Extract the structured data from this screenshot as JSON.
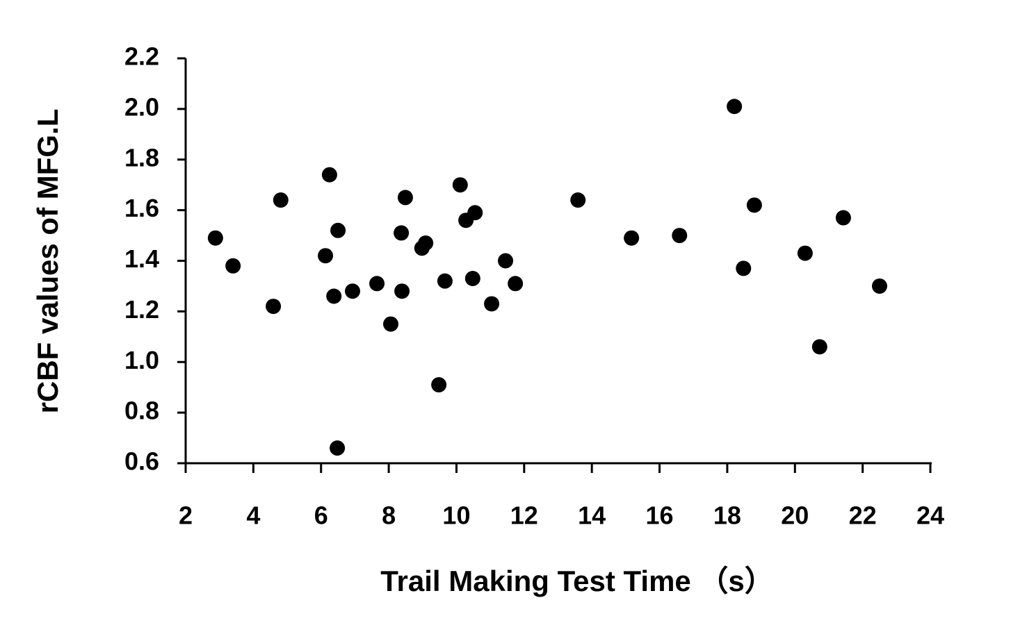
{
  "chart_data": {
    "type": "scatter",
    "xlabel": "Trail Making Test Time （s）",
    "ylabel": "rCBF values of MFG.L",
    "color": "#000000",
    "x": [
      2.88,
      3.4,
      4.59,
      4.81,
      6.25,
      6.13,
      6.5,
      6.38,
      6.48,
      6.93,
      7.65,
      8.06,
      8.37,
      8.39,
      8.49,
      8.98,
      9.09,
      9.48,
      9.66,
      10.11,
      10.28,
      10.48,
      10.55,
      11.04,
      11.45,
      11.74,
      13.59,
      15.17,
      16.59,
      18.21,
      18.48,
      18.8,
      20.3,
      20.73,
      21.43,
      22.5
    ],
    "values": [
      1.49,
      1.38,
      1.22,
      1.64,
      1.74,
      1.42,
      1.52,
      1.26,
      0.66,
      1.28,
      1.31,
      1.15,
      1.51,
      1.28,
      1.65,
      1.45,
      1.47,
      0.91,
      1.32,
      1.7,
      1.56,
      1.33,
      1.59,
      1.23,
      1.4,
      1.31,
      1.64,
      1.49,
      1.5,
      2.01,
      1.37,
      1.62,
      1.43,
      1.06,
      1.57,
      1.3
    ],
    "xlim": [
      2,
      24
    ],
    "xticks": [
      2,
      4,
      6,
      8,
      10,
      12,
      14,
      16,
      18,
      20,
      22,
      24
    ],
    "ylim": [
      0.6,
      2.2
    ],
    "yticks": [
      0.6,
      0.8,
      {
        "value": 1,
        "label": "1.0"
      },
      1.2,
      1.4,
      1.6,
      1.8,
      {
        "value": 2,
        "label": "2.0"
      },
      2.2
    ]
  }
}
